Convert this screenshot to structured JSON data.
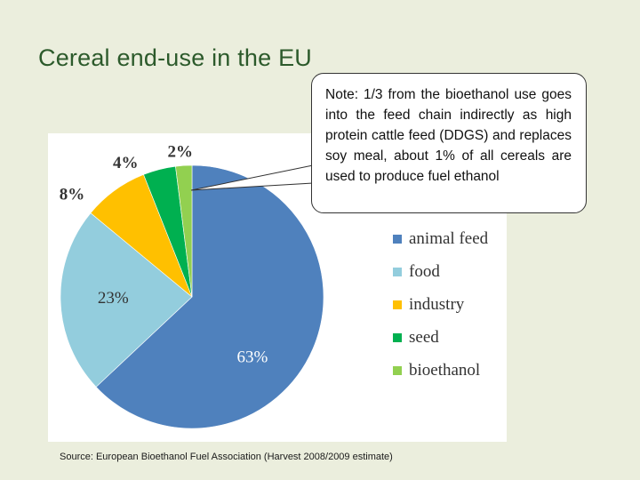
{
  "title": "Cereal end-use in the EU",
  "callout": {
    "text": "Note: 1/3 from the bioethanol use goes into the feed chain indirectly as high protein cattle feed (DDGS) and replaces soy meal, about 1% of all cereals are used to produce fuel ethanol"
  },
  "source": "Source: European Bioethanol Fuel Association (Harvest 2008/2009 estimate)",
  "chart_data": {
    "type": "pie",
    "title": "",
    "categories": [
      "animal feed",
      "food",
      "industry",
      "seed",
      "bioethanol"
    ],
    "values": [
      63,
      23,
      8,
      4,
      2
    ],
    "labels": [
      "63%",
      "23%",
      "8%",
      "4%",
      "2%"
    ],
    "colors": [
      "#4f81bd",
      "#93cddd",
      "#ffc000",
      "#00b050",
      "#92d050"
    ],
    "legend_position": "right",
    "start": "12 o'clock",
    "direction": "clockwise"
  }
}
